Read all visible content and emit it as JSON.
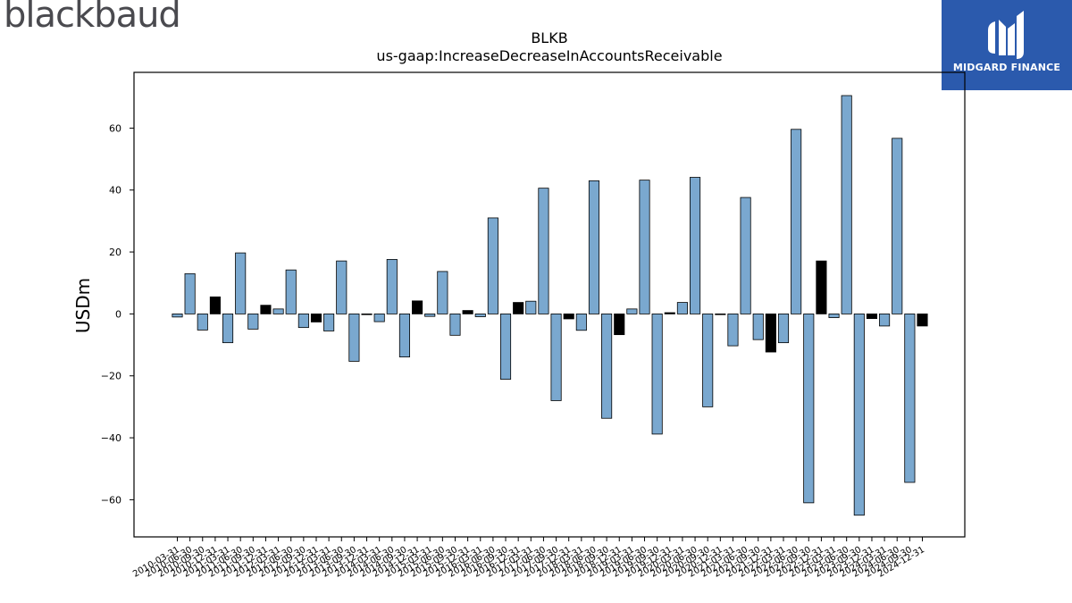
{
  "brand": {
    "left_logo_text": "blackbaud",
    "right_logo_text": "MIDGARD FINANCE",
    "right_logo_color": "#2b5aad"
  },
  "chart_data": {
    "type": "bar",
    "title": "BLKB",
    "subtitle": "us-gaap:IncreaseDecreaseInAccountsReceivable",
    "xlabel": "",
    "ylabel": "USDm",
    "ylim": [
      -72,
      78
    ],
    "yticks": [
      -60,
      -40,
      -20,
      0,
      20,
      40,
      60
    ],
    "ytick_labels": [
      "−60",
      "−40",
      "−20",
      "0",
      "20",
      "40",
      "60"
    ],
    "grid": false,
    "colors": {
      "quarter": "#7aa8cf",
      "annual": "#000000",
      "edge": "#000000"
    },
    "categories": [
      "2010-03-31",
      "2010-06-30",
      "2010-09-30",
      "2010-12-31",
      "2011-03-31",
      "2011-06-30",
      "2011-09-30",
      "2011-12-31",
      "2012-03-31",
      "2012-06-30",
      "2012-09-30",
      "2012-12-31",
      "2013-03-31",
      "2013-06-30",
      "2013-09-30",
      "2013-12-31",
      "2014-03-31",
      "2014-06-30",
      "2014-09-30",
      "2014-12-31",
      "2015-03-31",
      "2015-06-30",
      "2015-09-30",
      "2015-12-31",
      "2016-03-31",
      "2016-06-30",
      "2016-09-30",
      "2016-12-31",
      "2017-03-31",
      "2017-06-30",
      "2017-09-30",
      "2017-12-31",
      "2018-03-31",
      "2018-06-30",
      "2018-09-30",
      "2018-12-31",
      "2019-03-31",
      "2019-06-30",
      "2019-09-30",
      "2019-12-31",
      "2020-03-31",
      "2020-06-30",
      "2020-09-30",
      "2020-12-31",
      "2021-03-31",
      "2021-06-30",
      "2021-09-30",
      "2021-12-31",
      "2022-03-31",
      "2022-06-30",
      "2022-09-30",
      "2022-12-31",
      "2023-03-31",
      "2023-06-30",
      "2023-09-30",
      "2023-12-31",
      "2024-03-31",
      "2024-06-30",
      "2024-09-30",
      "2024-12-31"
    ],
    "values": [
      -1,
      13,
      -5.2,
      5.5,
      -9.3,
      19.7,
      -4.9,
      2.8,
      1.6,
      14.2,
      -4.4,
      -2.6,
      -5.5,
      17.1,
      -15.3,
      0,
      -2.5,
      17.6,
      -13.9,
      4.2,
      -0.8,
      13.7,
      -6.9,
      1.1,
      -0.9,
      31,
      -21.1,
      3.7,
      4.1,
      40.6,
      -28,
      -1.6,
      -5.3,
      43,
      -33.7,
      -6.7,
      1.6,
      43.2,
      -38.8,
      0.4,
      3.7,
      44.1,
      -30,
      0,
      -10.3,
      37.6,
      -8.3,
      -12.3,
      -9.3,
      59.6,
      -61,
      17.1,
      -1.2,
      70.5,
      -65,
      -1.5,
      -3.9,
      56.7,
      -54.4,
      -3.9
    ],
    "is_annual": [
      false,
      false,
      false,
      true,
      false,
      false,
      false,
      true,
      false,
      false,
      false,
      true,
      false,
      false,
      false,
      true,
      false,
      false,
      false,
      true,
      false,
      false,
      false,
      true,
      false,
      false,
      false,
      true,
      false,
      false,
      false,
      true,
      false,
      false,
      false,
      true,
      false,
      false,
      false,
      true,
      false,
      false,
      false,
      true,
      false,
      false,
      false,
      true,
      false,
      false,
      false,
      true,
      false,
      false,
      false,
      true,
      false,
      false,
      false,
      true
    ]
  }
}
